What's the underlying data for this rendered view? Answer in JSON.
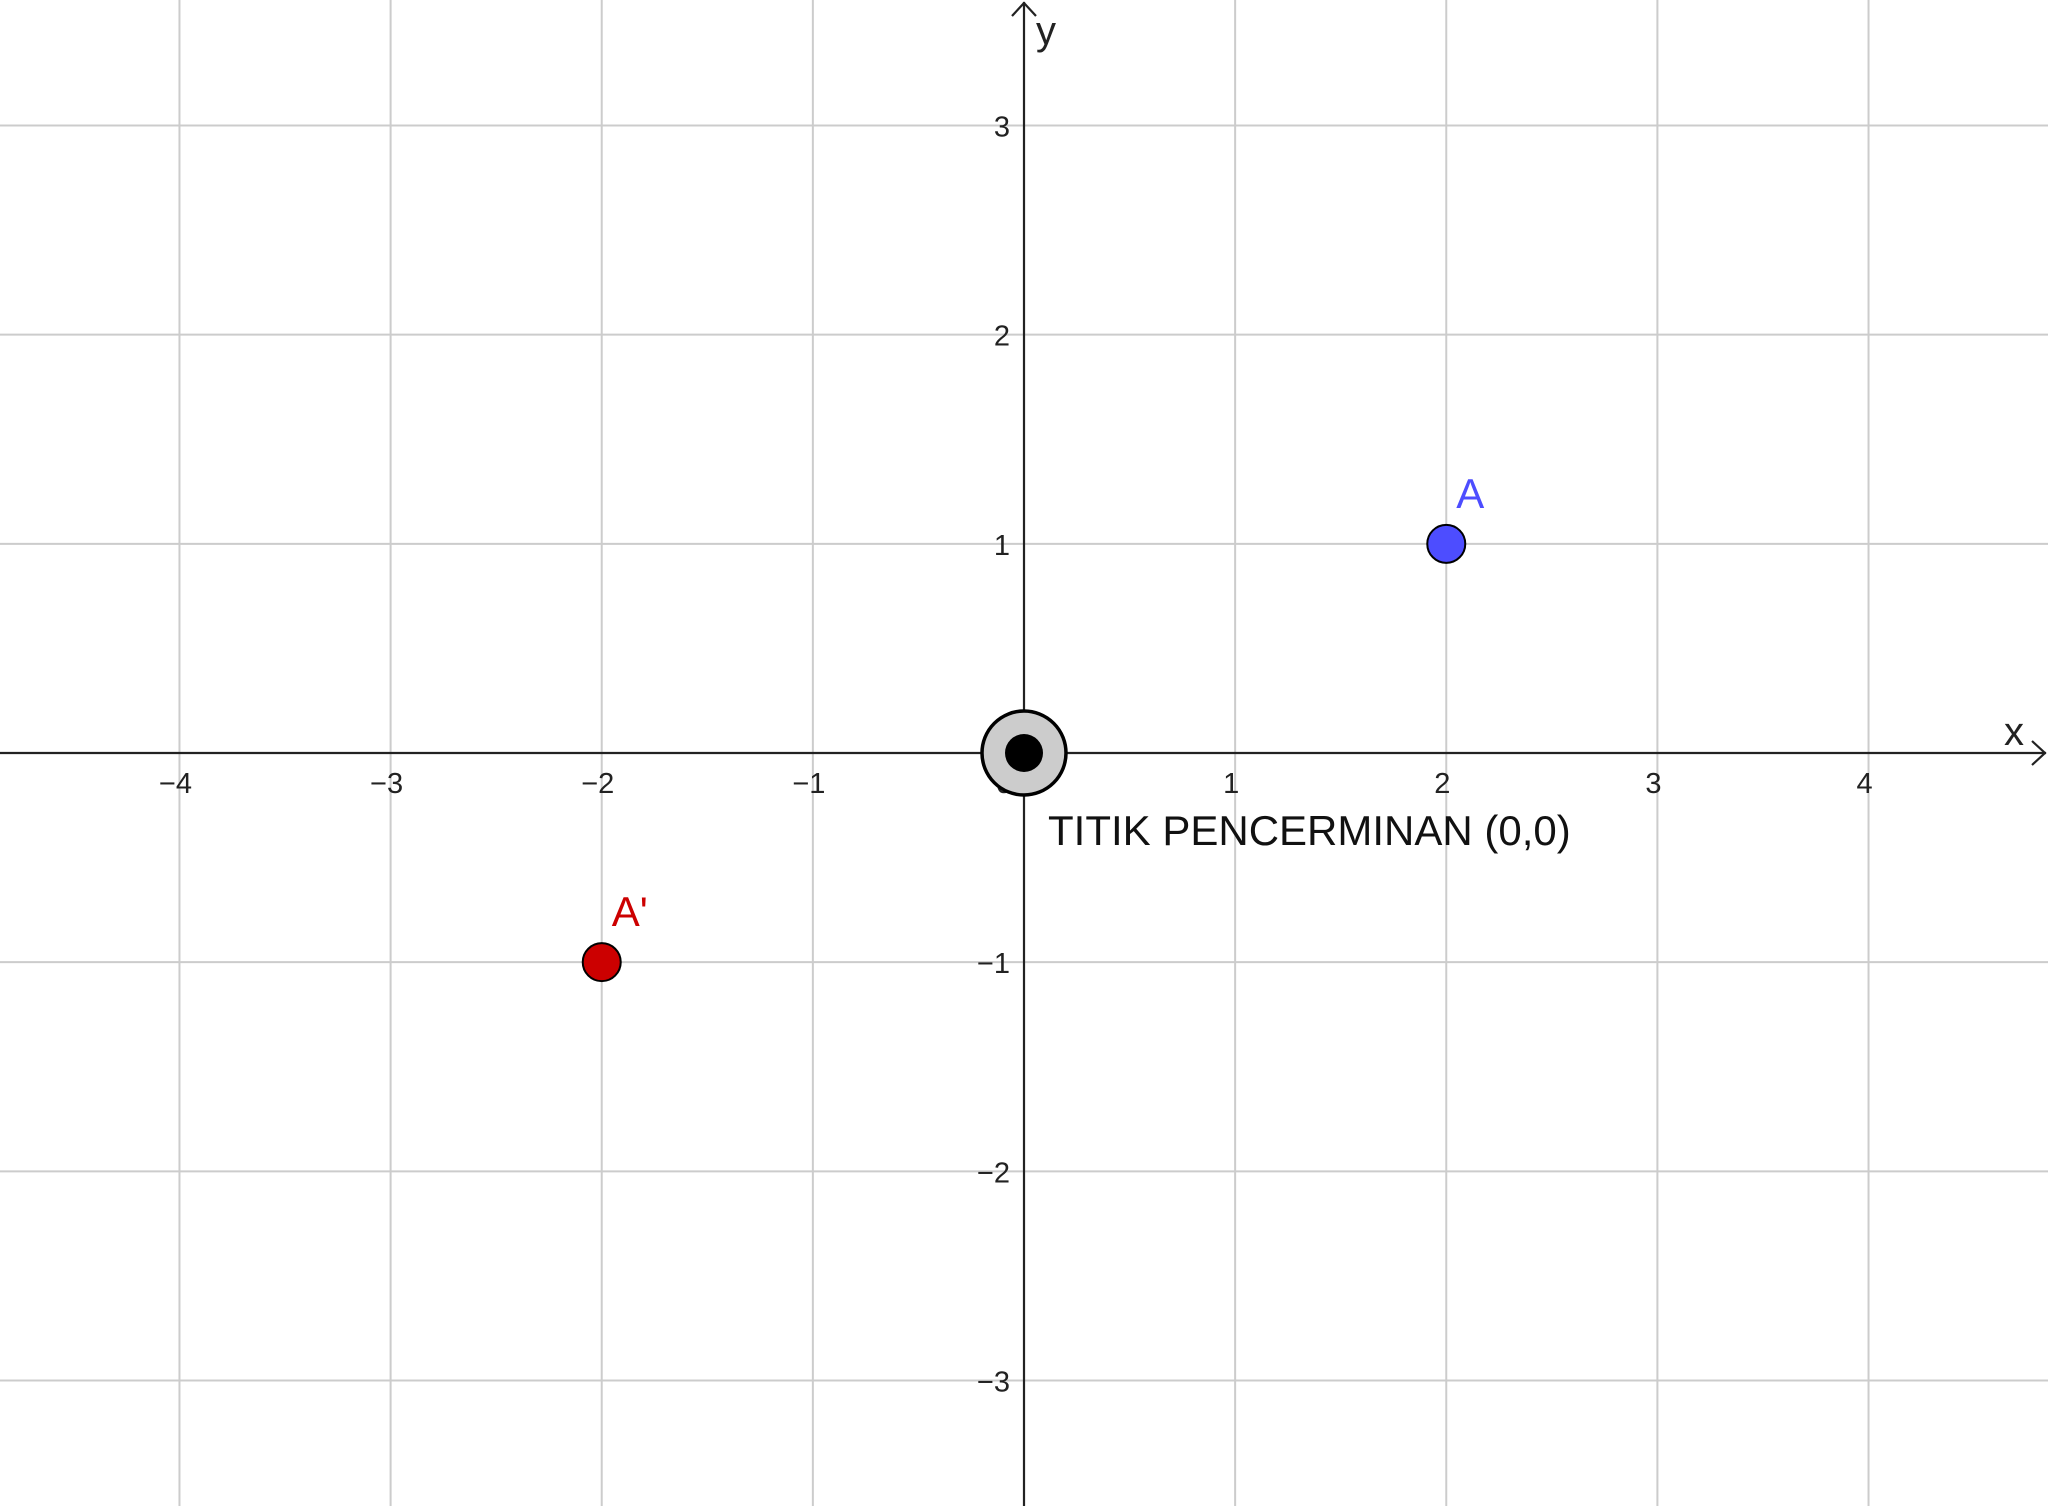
{
  "chart_data": {
    "type": "scatter",
    "title": "",
    "xlabel": "x",
    "ylabel": "y",
    "xlim": [
      -4.85,
      4.85
    ],
    "ylim": [
      -3.6,
      3.6
    ],
    "grid": true,
    "x_ticks": [
      -4,
      -3,
      -2,
      -1,
      0,
      1,
      2,
      3,
      4
    ],
    "x_tick_labels": [
      "−4",
      "−3",
      "−2",
      "−1",
      "0",
      "1",
      "2",
      "3",
      "4"
    ],
    "y_ticks": [
      -3,
      -2,
      -1,
      1,
      2,
      3
    ],
    "y_tick_labels": [
      "−3",
      "−2",
      "−1",
      "1",
      "2",
      "3"
    ],
    "points": [
      {
        "name": "A",
        "x": 2,
        "y": 1,
        "color": "#4d4dff"
      },
      {
        "name": "A'",
        "x": -2,
        "y": -1,
        "color": "#cc0000"
      }
    ],
    "center": {
      "x": 0,
      "y": 0,
      "label": "TITIK PENCERMINAN (0,0)",
      "color": "#000000",
      "ring_color": "#cccccc"
    },
    "colors": {
      "grid": "#cccccc",
      "axis": "#222222",
      "text": "#222222"
    }
  }
}
